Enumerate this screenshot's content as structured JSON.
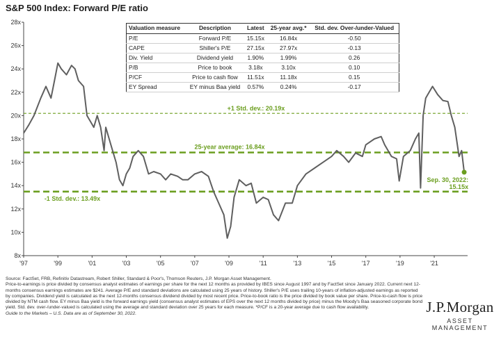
{
  "title": "S&P 500 Index: Forward P/E ratio",
  "colors": {
    "line": "#5f5f5f",
    "accent": "#6b9e1f",
    "axis": "#444444"
  },
  "table": {
    "headers": [
      "Valuation measure",
      "Description",
      "Latest",
      "25-year avg.*",
      "Std. dev. Over-/under-Valued"
    ],
    "rows": [
      [
        "P/E",
        "Forward P/E",
        "15.15x",
        "16.84x",
        "-0.50"
      ],
      [
        "CAPE",
        "Shiller's P/E",
        "27.15x",
        "27.97x",
        "-0.13"
      ],
      [
        "Div. Yield",
        "Dividend yield",
        "1.90%",
        "1.99%",
        "0.26"
      ],
      [
        "P/B",
        "Price to book",
        "3.18x",
        "3.10x",
        "0.10"
      ],
      [
        "P/CF",
        "Price to cash flow",
        "11.51x",
        "11.18x",
        "0.15"
      ],
      [
        "EY Spread",
        "EY minus Baa yield",
        "0.57%",
        "0.24%",
        "-0.17"
      ]
    ]
  },
  "chart_data": {
    "type": "line",
    "title": "S&P 500 Index: Forward P/E ratio",
    "ylim": [
      8,
      28
    ],
    "xlim": [
      1997,
      2022.95
    ],
    "yticks": [
      "8x",
      "10x",
      "12x",
      "14x",
      "16x",
      "18x",
      "20x",
      "22x",
      "24x",
      "26x",
      "28x"
    ],
    "xticks": [
      "'97",
      "'99",
      "'01",
      "'03",
      "'05",
      "'07",
      "'09",
      "'11",
      "'13",
      "'15",
      "'17",
      "'19",
      "'21"
    ],
    "series": [
      {
        "x": [
          1997.0,
          1997.3,
          1997.6,
          1998.0,
          1998.3,
          1998.6,
          1998.8,
          1999.0,
          1999.2,
          1999.5,
          1999.8,
          2000.0,
          2000.2,
          2000.5,
          2000.7,
          2000.9,
          2001.1,
          2001.3,
          2001.5,
          2001.7,
          2001.8,
          2002.0,
          2002.2,
          2002.4,
          2002.6,
          2002.8,
          2003.0,
          2003.2,
          2003.4,
          2003.7,
          2004.0,
          2004.3,
          2004.6,
          2005.0,
          2005.3,
          2005.6,
          2006.0,
          2006.3,
          2006.6,
          2007.0,
          2007.4,
          2007.8,
          2008.1,
          2008.4,
          2008.7,
          2008.9,
          2009.1,
          2009.3,
          2009.6,
          2010.0,
          2010.3,
          2010.6,
          2011.0,
          2011.3,
          2011.6,
          2011.9,
          2012.3,
          2012.7,
          2013.0,
          2013.5,
          2014.0,
          2014.5,
          2015.0,
          2015.3,
          2015.7,
          2016.0,
          2016.4,
          2016.8,
          2017.0,
          2017.5,
          2017.9,
          2018.1,
          2018.5,
          2018.8,
          2018.95,
          2019.2,
          2019.6,
          2019.9,
          2020.1,
          2020.2,
          2020.35,
          2020.5,
          2020.7,
          2020.9,
          2021.2,
          2021.5,
          2021.8,
          2022.0,
          2022.2,
          2022.45,
          2022.6,
          2022.75
        ],
        "y": [
          18.5,
          19.2,
          20.0,
          21.5,
          22.5,
          21.5,
          23.0,
          24.5,
          24.0,
          23.5,
          24.3,
          24.0,
          23.0,
          22.5,
          20.0,
          19.5,
          19.0,
          20.0,
          19.0,
          17.0,
          19.0,
          18.0,
          17.0,
          16.0,
          14.5,
          14.0,
          15.0,
          15.5,
          16.5,
          17.0,
          16.5,
          15.0,
          15.2,
          15.0,
          14.5,
          15.0,
          14.8,
          14.5,
          14.5,
          15.0,
          15.2,
          14.8,
          13.5,
          12.5,
          11.5,
          9.5,
          10.5,
          13.0,
          14.5,
          14.0,
          14.2,
          12.5,
          13.0,
          12.8,
          11.5,
          11.0,
          12.5,
          12.5,
          14.0,
          15.0,
          15.5,
          16.0,
          16.5,
          17.0,
          16.5,
          16.0,
          16.8,
          16.5,
          17.5,
          18.0,
          18.2,
          17.5,
          16.5,
          16.3,
          14.4,
          16.5,
          17.0,
          18.0,
          18.5,
          13.8,
          20.0,
          21.5,
          22.0,
          22.5,
          21.8,
          21.3,
          21.2,
          20.0,
          19.0,
          16.5,
          17.0,
          15.15
        ]
      }
    ],
    "reference_lines": [
      {
        "label": "+1 Std. dev.: 20.19x",
        "value": 20.19
      },
      {
        "label": "25-year average: 16.84x",
        "value": 16.84
      },
      {
        "label": "-1 Std. dev.: 13.49x",
        "value": 13.49
      }
    ],
    "latest_annotation": {
      "date_label": "Sep. 30, 2022:",
      "value_label": "15.15x",
      "x": 2022.75,
      "y": 15.15
    }
  },
  "footnotes": [
    "Source: FactSet, FRB, Refinitiv Datastream, Robert Shiller, Standard & Poor's, Thomson Reuters, J.P. Morgan Asset Management.",
    "Price-to-earnings is price divided by consensus analyst estimates of earnings per share for the next 12 months as provided by IBES since August 1997 and by FactSet since January 2022. Current next 12-months consensus earnings estimates are $241. Average P/E and standard deviations are calculated using 25 years of history. Shiller's P/E uses trailing 10-years of inflation-adjusted earnings as reported by companies. Dividend yield is calculated as the next 12-months consensus dividend divided by most recent price. Price-to-book ratio is the price divided by book value per share. Price-to-cash flow is price divided by NTM cash flow. EY minus Baa yield is the forward earnings yield (consensus analyst estimates of EPS over the next 12 months divided by price) minus the Moody's Baa seasoned corporate bond yield. Std. dev. over-/under-valued is calculated using the average and standard deviation over 25 years for each measure. *P/CF is a 20-year average due to cash flow availability."
  ],
  "guide": "Guide to the Markets – U.S. Data are as of September 30, 2022.",
  "logo": {
    "brand": "J.P.Morgan",
    "sub": "ASSET MANAGEMENT"
  }
}
